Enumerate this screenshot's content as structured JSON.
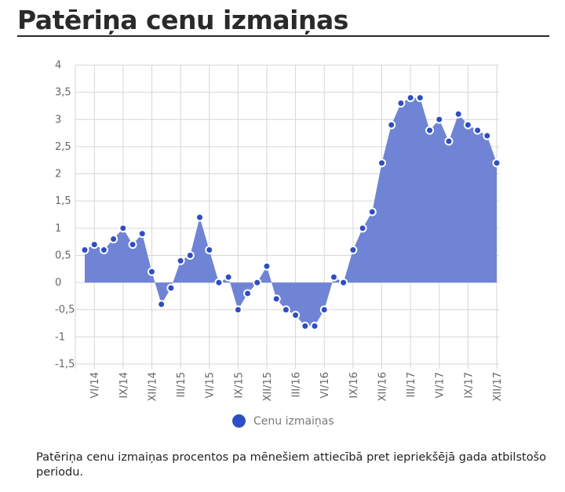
{
  "title": "Patēriņa cenu izmaiņas",
  "caption": "Patēriņa cenu izmaiņas procentos pa mēnešiem attiecībā pret iepriekšējā gada atbilstošo periodu.",
  "colors": {
    "area": "#6f84d4",
    "point": "#2f4ec1",
    "grid": "#d6d6d6"
  },
  "chart_data": {
    "type": "area",
    "ylim": [
      -1.5,
      4
    ],
    "y_ticks": [
      "4",
      "3,5",
      "3",
      "2,5",
      "2",
      "1,5",
      "1",
      "0,5",
      "0",
      "-0,5",
      "-1",
      "-1,5"
    ],
    "y_tick_values": [
      4,
      3.5,
      3,
      2.5,
      2,
      1.5,
      1,
      0.5,
      0,
      -0.5,
      -1,
      -1.5
    ],
    "x_ticks": [
      {
        "label": "VI/14",
        "index": 1
      },
      {
        "label": "IX/14",
        "index": 4
      },
      {
        "label": "XII/14",
        "index": 7
      },
      {
        "label": "III/15",
        "index": 10
      },
      {
        "label": "VI/15",
        "index": 13
      },
      {
        "label": "IX/15",
        "index": 16
      },
      {
        "label": "XII/15",
        "index": 19
      },
      {
        "label": "III/16",
        "index": 22
      },
      {
        "label": "VI/16",
        "index": 25
      },
      {
        "label": "IX/16",
        "index": 28
      },
      {
        "label": "XII/16",
        "index": 31
      },
      {
        "label": "III/17",
        "index": 34
      },
      {
        "label": "VI/17",
        "index": 37
      },
      {
        "label": "IX/17",
        "index": 40
      },
      {
        "label": "XII/17",
        "index": 43
      }
    ],
    "grid": true,
    "legend_position": "bottom",
    "series": [
      {
        "name": "Cenu izmaiņas",
        "values": [
          0.6,
          0.7,
          0.6,
          0.8,
          1.0,
          0.7,
          0.9,
          0.2,
          -0.4,
          -0.1,
          0.4,
          0.5,
          1.2,
          0.6,
          0.0,
          0.1,
          -0.5,
          -0.2,
          0.0,
          0.3,
          -0.3,
          -0.5,
          -0.6,
          -0.8,
          -0.8,
          -0.5,
          0.1,
          0.0,
          0.6,
          1.0,
          1.3,
          2.2,
          2.9,
          3.3,
          3.4,
          3.4,
          2.8,
          3.0,
          2.6,
          3.1,
          2.9,
          2.8,
          2.7,
          2.2
        ]
      }
    ]
  }
}
